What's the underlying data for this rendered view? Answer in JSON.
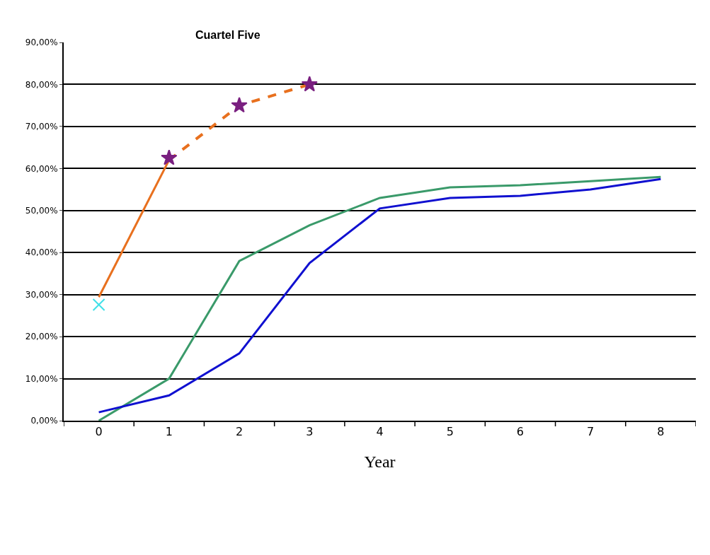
{
  "chart_data": {
    "type": "line",
    "xlabel": "Year",
    "annotations": [
      "Cuartel Five"
    ],
    "categories": [
      "0",
      "1",
      "2",
      "3",
      "4",
      "5",
      "6",
      "7",
      "8"
    ],
    "series": [
      {
        "color": "#3a9a6a",
        "values": [
          0,
          10,
          38,
          46.5,
          53,
          55.5,
          56,
          57,
          58
        ],
        "line_style": "solid"
      },
      {
        "color": "#1010d0",
        "values": [
          2,
          6,
          16,
          37.5,
          50.5,
          53,
          53.5,
          55,
          57.5
        ],
        "line_style": "solid"
      },
      {
        "color": "#e8701e",
        "values": [
          29.4,
          62,
          null,
          null,
          null,
          null,
          null,
          null,
          null
        ],
        "line_style": "solid"
      },
      {
        "color": "#e8701e",
        "values": [
          null,
          62,
          75,
          80,
          null,
          null,
          null,
          null,
          null
        ],
        "line_style": "dashed"
      },
      {
        "type": "scatter",
        "color": "#40e0e8",
        "marker": "cross",
        "values": [
          27.6,
          null,
          null,
          null,
          null,
          null,
          null,
          null,
          null
        ]
      },
      {
        "type": "scatter",
        "color": "#7a2080",
        "marker": "star",
        "values": [
          null,
          62.5,
          75,
          80,
          null,
          null,
          null,
          null,
          null
        ]
      }
    ],
    "ylim": [
      0,
      90
    ],
    "yticks": [
      {
        "value": 0,
        "label": "0,00%"
      },
      {
        "value": 10,
        "label": "10,00%"
      },
      {
        "value": 20,
        "label": "20,00%"
      },
      {
        "value": 30,
        "label": "30,00%"
      },
      {
        "value": 40,
        "label": "40,00%"
      },
      {
        "value": 50,
        "label": "50,00%"
      },
      {
        "value": 60,
        "label": "60,00%"
      },
      {
        "value": 70,
        "label": "70,00%"
      },
      {
        "value": 80,
        "label": "80,00%"
      },
      {
        "value": 90,
        "label": "90,00%"
      }
    ],
    "grid": "y"
  }
}
